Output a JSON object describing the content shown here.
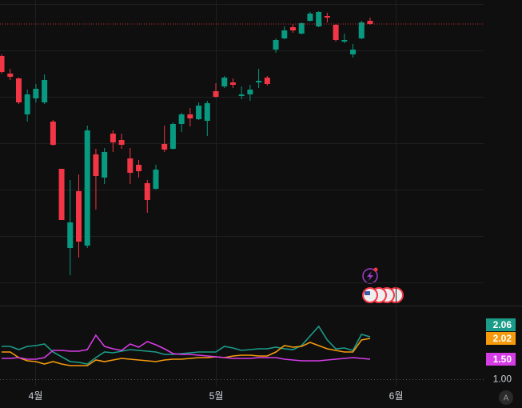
{
  "chart_data": {
    "type": "candlestick",
    "xlim": [
      -0.19,
      56.25
    ],
    "ylim": [
      0,
      380
    ],
    "xticks": [
      {
        "value": 3.9,
        "label": "4월"
      },
      {
        "value": 25.0,
        "label": "5월"
      },
      {
        "value": 46.0,
        "label": "6월"
      }
    ],
    "grid_y": [
      27,
      85,
      143,
      201,
      259,
      317,
      375
    ],
    "up_color": "#089981",
    "down_color": "#f23645",
    "open": [
      310,
      288,
      282,
      237,
      257,
      252,
      228,
      169,
      70,
      141,
      73,
      187,
      158,
      213,
      205,
      182,
      174,
      151,
      144,
      200,
      194,
      225,
      237,
      231,
      229,
      266,
      272,
      277,
      260,
      262,
      277,
      283,
      318,
      332,
      346,
      338,
      354,
      347,
      360,
      349,
      328,
      312,
      332,
      354
    ],
    "high": [
      312,
      294,
      283,
      268,
      275,
      287,
      230,
      169,
      155,
      162,
      223,
      194,
      195,
      217,
      213,
      195,
      180,
      155,
      174,
      223,
      227,
      239,
      245,
      252,
      254,
      276,
      285,
      282,
      272,
      274,
      294,
      285,
      332,
      347,
      350,
      352,
      365,
      366,
      364,
      350,
      338,
      325,
      354,
      358
    ],
    "low": [
      288,
      280,
      250,
      228,
      252,
      250,
      198,
      105,
      36,
      58,
      70,
      118,
      150,
      190,
      194,
      150,
      158,
      114,
      143,
      190,
      193,
      215,
      222,
      230,
      210,
      258,
      270,
      270,
      256,
      254,
      270,
      273,
      314,
      331,
      339,
      337,
      353,
      346,
      352,
      328,
      326,
      308,
      331,
      349
    ],
    "close": [
      290,
      284,
      252,
      262,
      269,
      280,
      199,
      105,
      102,
      78,
      217,
      160,
      190,
      202,
      199,
      164,
      166,
      130,
      168,
      193,
      225,
      237,
      232,
      248,
      251,
      259,
      283,
      274,
      262,
      268,
      279,
      275,
      330,
      342,
      342,
      351,
      363,
      365,
      358,
      330,
      330,
      318,
      352,
      350
    ],
    "indicator": {
      "y2lim": [
        0.82,
        2.82
      ],
      "y2ticks": [
        {
          "value": 1,
          "label": "1.00"
        }
      ],
      "series": [
        {
          "color": "#1a9c88",
          "last_label": "2.06",
          "values": [
            1.82,
            1.82,
            1.74,
            1.82,
            1.84,
            1.88,
            1.68,
            1.56,
            1.44,
            1.42,
            1.38,
            1.54,
            1.68,
            1.66,
            1.7,
            1.74,
            1.72,
            1.7,
            1.68,
            1.62,
            1.62,
            1.64,
            1.66,
            1.68,
            1.68,
            1.68,
            1.82,
            1.78,
            1.72,
            1.74,
            1.76,
            1.76,
            1.8,
            1.76,
            1.74,
            1.84,
            2.08,
            2.32,
            1.98,
            1.76,
            1.78,
            1.72,
            2.12,
            2.06
          ]
        },
        {
          "color": "#f59a0c",
          "last_label": "2.02",
          "values": [
            1.68,
            1.68,
            1.54,
            1.46,
            1.44,
            1.38,
            1.44,
            1.38,
            1.34,
            1.34,
            1.34,
            1.48,
            1.44,
            1.48,
            1.52,
            1.5,
            1.48,
            1.46,
            1.44,
            1.48,
            1.5,
            1.5,
            1.52,
            1.54,
            1.54,
            1.56,
            1.54,
            1.58,
            1.6,
            1.6,
            1.58,
            1.58,
            1.68,
            1.84,
            1.8,
            1.82,
            1.92,
            1.84,
            1.76,
            1.72,
            1.68,
            1.68,
            1.98,
            2.02
          ]
        },
        {
          "color": "#d63ce6",
          "last_label": "1.50",
          "values": [
            1.52,
            1.52,
            1.54,
            1.5,
            1.5,
            1.54,
            1.72,
            1.72,
            1.7,
            1.7,
            1.74,
            2.1,
            1.82,
            1.76,
            1.72,
            1.88,
            1.8,
            1.94,
            1.86,
            1.76,
            1.64,
            1.62,
            1.62,
            1.6,
            1.58,
            1.56,
            1.54,
            1.52,
            1.52,
            1.52,
            1.54,
            1.54,
            1.54,
            1.5,
            1.48,
            1.46,
            1.46,
            1.46,
            1.48,
            1.5,
            1.52,
            1.54,
            1.52,
            1.5
          ]
        }
      ]
    }
  }
}
